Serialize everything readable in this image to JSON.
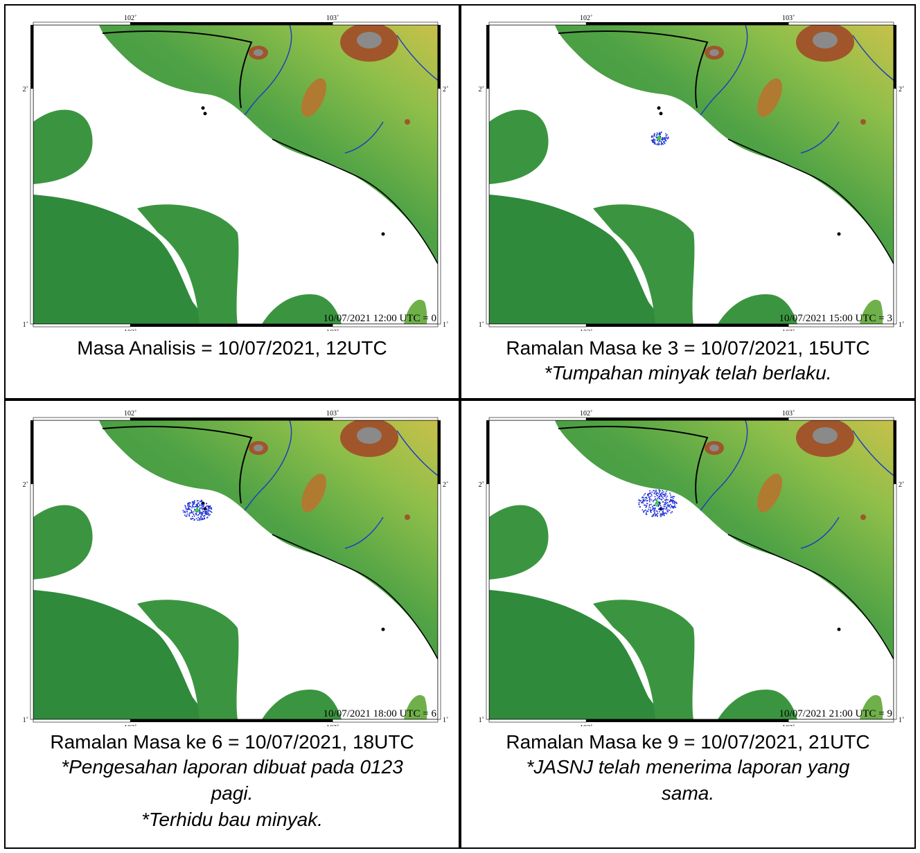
{
  "axis_labels": {
    "lon_left": "102˚",
    "lon_right": "103˚",
    "lat_top": "2˚",
    "lat_bottom": "1˚"
  },
  "colors": {
    "land_low": "#2f8a3c",
    "land_mid": "#8fbf4a",
    "land_high": "#a0562a",
    "peak": "#8a8a8a",
    "river": "#1f3fbf",
    "oil_particles": "#1a2bd6",
    "spill_center": "#3ecf3e"
  },
  "panels": [
    {
      "id": "p0",
      "stamp": "10/07/2021 12:00 UTC = 0",
      "caption": "Masa Analisis = 10/07/2021, 12UTC",
      "notes": [],
      "spill": null
    },
    {
      "id": "p3",
      "stamp": "10/07/2021 15:00 UTC = 3",
      "caption": "Ramalan Masa ke 3 = 10/07/2021, 15UTC",
      "notes": [
        "*Tumpahan minyak telah berlaku."
      ],
      "spill": {
        "lon": 102.36,
        "lat": 1.79,
        "spread": 0.25
      }
    },
    {
      "id": "p6",
      "stamp": "10/07/2021 18:00 UTC = 6",
      "caption": "Ramalan Masa ke 6 = 10/07/2021, 18UTC",
      "notes": [
        "*Pengesahan laporan dibuat pada 0123",
        "pagi.",
        "*Terhidu bau minyak."
      ],
      "spill": {
        "lon": 102.33,
        "lat": 1.89,
        "spread": 0.65
      }
    },
    {
      "id": "p9",
      "stamp": "10/07/2021 21:00 UTC = 9",
      "caption": "Ramalan Masa ke 9 = 10/07/2021, 21UTC",
      "notes": [
        "*JASNJ telah menerima laporan yang",
        "sama."
      ],
      "spill": {
        "lon": 102.35,
        "lat": 1.92,
        "spread": 1.0
      }
    }
  ]
}
